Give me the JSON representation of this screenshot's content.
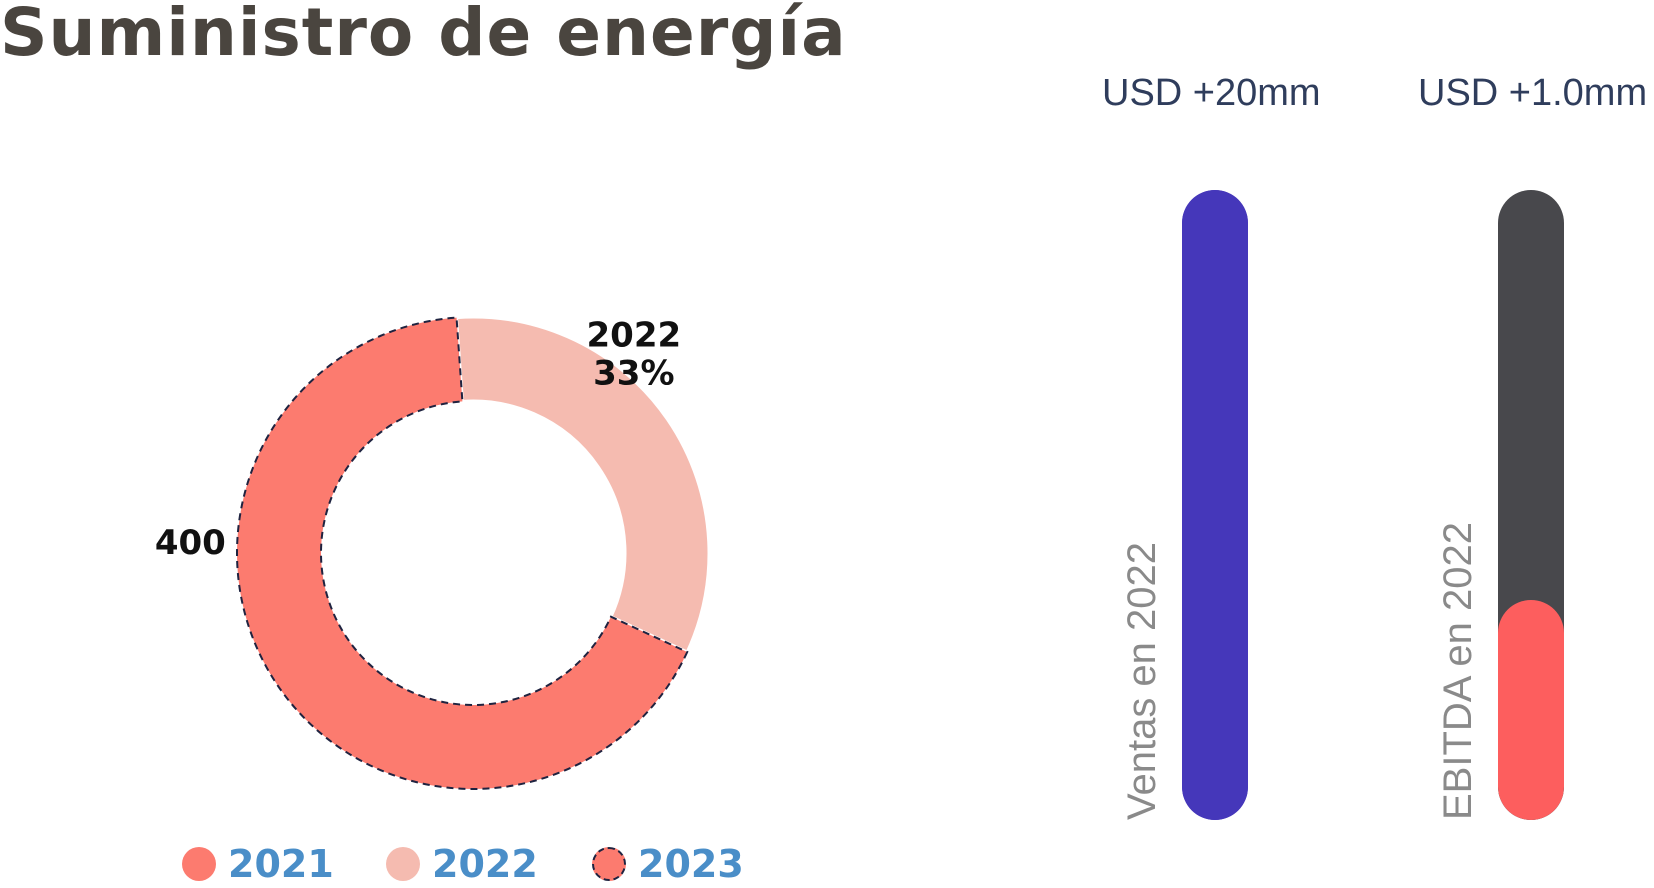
{
  "title": "Suministro de energía",
  "chart_data": [
    {
      "type": "pie",
      "variant": "donut",
      "slices": [
        {
          "name": "2021",
          "value": 0,
          "color": "#fc7b6f"
        },
        {
          "name": "2022",
          "value": 33,
          "color": "#f5bbb0"
        },
        {
          "name": "2023",
          "value": 67,
          "color": "#fc7b6f",
          "border": "dashed"
        }
      ],
      "annotations": [
        {
          "series": "2022",
          "line1": "2022",
          "line2": "33%"
        },
        {
          "series": "2023",
          "text": "400"
        }
      ],
      "legend": {
        "placement": "bottom",
        "entries": [
          {
            "label": "2021",
            "color": "#fc7b6f",
            "style": "solid"
          },
          {
            "label": "2022",
            "color": "#f5bbb0",
            "style": "solid"
          },
          {
            "label": "2023",
            "color": "#fc7b6f",
            "style": "dashed"
          }
        ]
      }
    },
    {
      "type": "bar",
      "orientation": "vertical",
      "bars": [
        {
          "headline": "USD +20mm",
          "label": "Ventas en 2022",
          "fill_fraction": 1.0,
          "fill_color": "#4537ba",
          "track_color": "#4537ba"
        },
        {
          "headline": "USD +1.0mm",
          "label": "EBITDA en 2022",
          "fill_fraction": 0.35,
          "fill_color": "#fd5e5e",
          "track_color": "#48484c"
        }
      ]
    }
  ]
}
